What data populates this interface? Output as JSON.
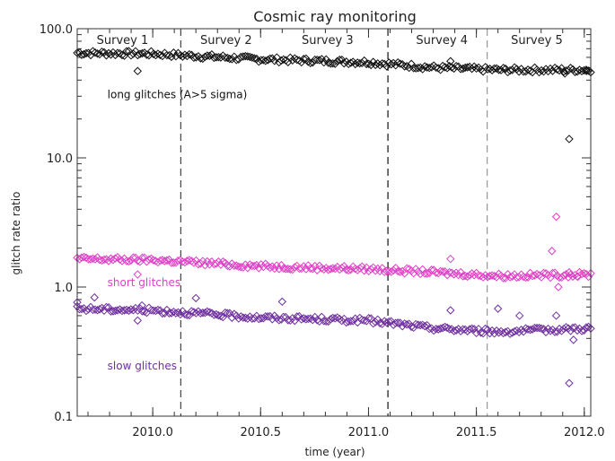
{
  "chart_data": {
    "type": "scatter",
    "title": "Cosmic ray monitoring",
    "xlabel": "time (year)",
    "ylabel": "glitch rate ratio",
    "xlim": [
      2009.65,
      2012.03
    ],
    "ylim": [
      0.1,
      100
    ],
    "yscale": "log",
    "x_ticks": [
      {
        "value": 2010.0,
        "label": "2010.0"
      },
      {
        "value": 2010.5,
        "label": "2010.5"
      },
      {
        "value": 2011.0,
        "label": "2011.0"
      },
      {
        "value": 2011.5,
        "label": "2011.5"
      },
      {
        "value": 2012.0,
        "label": "2012.0"
      }
    ],
    "y_ticks": [
      {
        "value": 100,
        "label": "100.0"
      },
      {
        "value": 10,
        "label": "10.0"
      },
      {
        "value": 1,
        "label": "1.0"
      },
      {
        "value": 0.1,
        "label": "0.1"
      }
    ],
    "marker": "diamond",
    "survey_boundaries": [
      {
        "x": 2010.13,
        "style": "dashed",
        "color": "#444444"
      },
      {
        "x": 2011.09,
        "style": "dashed",
        "color": "#111111"
      },
      {
        "x": 2011.55,
        "style": "dashed",
        "color": "#999999"
      }
    ],
    "surveys": [
      {
        "label": "Survey 1",
        "x": 2009.86
      },
      {
        "label": "Survey 2",
        "x": 2010.34
      },
      {
        "label": "Survey 3",
        "x": 2010.81
      },
      {
        "label": "Survey 4",
        "x": 2011.34
      },
      {
        "label": "Survey 5",
        "x": 2011.78
      }
    ],
    "series": [
      {
        "label": "long glitches (A>5 sigma)",
        "label_x": 2009.79,
        "label_y": 29,
        "color": "#111111",
        "trend": [
          [
            2009.65,
            65
          ],
          [
            2010.0,
            64
          ],
          [
            2010.5,
            58
          ],
          [
            2011.0,
            55
          ],
          [
            2011.3,
            50
          ],
          [
            2011.6,
            48
          ],
          [
            2012.03,
            48
          ]
        ],
        "outliers": [
          [
            2009.93,
            47
          ],
          [
            2011.38,
            56
          ],
          [
            2011.93,
            14
          ],
          [
            2011.91,
            45
          ],
          [
            2012.01,
            47
          ]
        ]
      },
      {
        "label": "short glitches",
        "label_x": 2009.79,
        "label_y": 1.02,
        "color": "#e040c8",
        "trend": [
          [
            2009.65,
            1.65
          ],
          [
            2010.0,
            1.62
          ],
          [
            2010.5,
            1.45
          ],
          [
            2011.0,
            1.38
          ],
          [
            2011.3,
            1.3
          ],
          [
            2011.6,
            1.22
          ],
          [
            2012.03,
            1.25
          ]
        ],
        "outliers": [
          [
            2009.93,
            1.25
          ],
          [
            2011.38,
            1.65
          ],
          [
            2011.85,
            1.9
          ],
          [
            2011.87,
            3.5
          ],
          [
            2011.93,
            1.3
          ],
          [
            2011.88,
            1.0
          ],
          [
            2011.97,
            1.2
          ]
        ]
      },
      {
        "label": "slow glitches",
        "label_x": 2009.79,
        "label_y": 0.23,
        "color": "#7030a0",
        "trend": [
          [
            2009.65,
            0.68
          ],
          [
            2010.0,
            0.66
          ],
          [
            2010.5,
            0.58
          ],
          [
            2011.0,
            0.55
          ],
          [
            2011.3,
            0.48
          ],
          [
            2011.6,
            0.45
          ],
          [
            2012.03,
            0.48
          ]
        ],
        "outliers": [
          [
            2009.65,
            0.76
          ],
          [
            2009.73,
            0.83
          ],
          [
            2009.93,
            0.55
          ],
          [
            2009.95,
            0.72
          ],
          [
            2010.2,
            0.82
          ],
          [
            2010.6,
            0.77
          ],
          [
            2011.38,
            0.66
          ],
          [
            2011.6,
            0.68
          ],
          [
            2011.7,
            0.6
          ],
          [
            2011.87,
            0.6
          ],
          [
            2011.93,
            0.18
          ],
          [
            2011.95,
            0.39
          ]
        ]
      }
    ]
  }
}
